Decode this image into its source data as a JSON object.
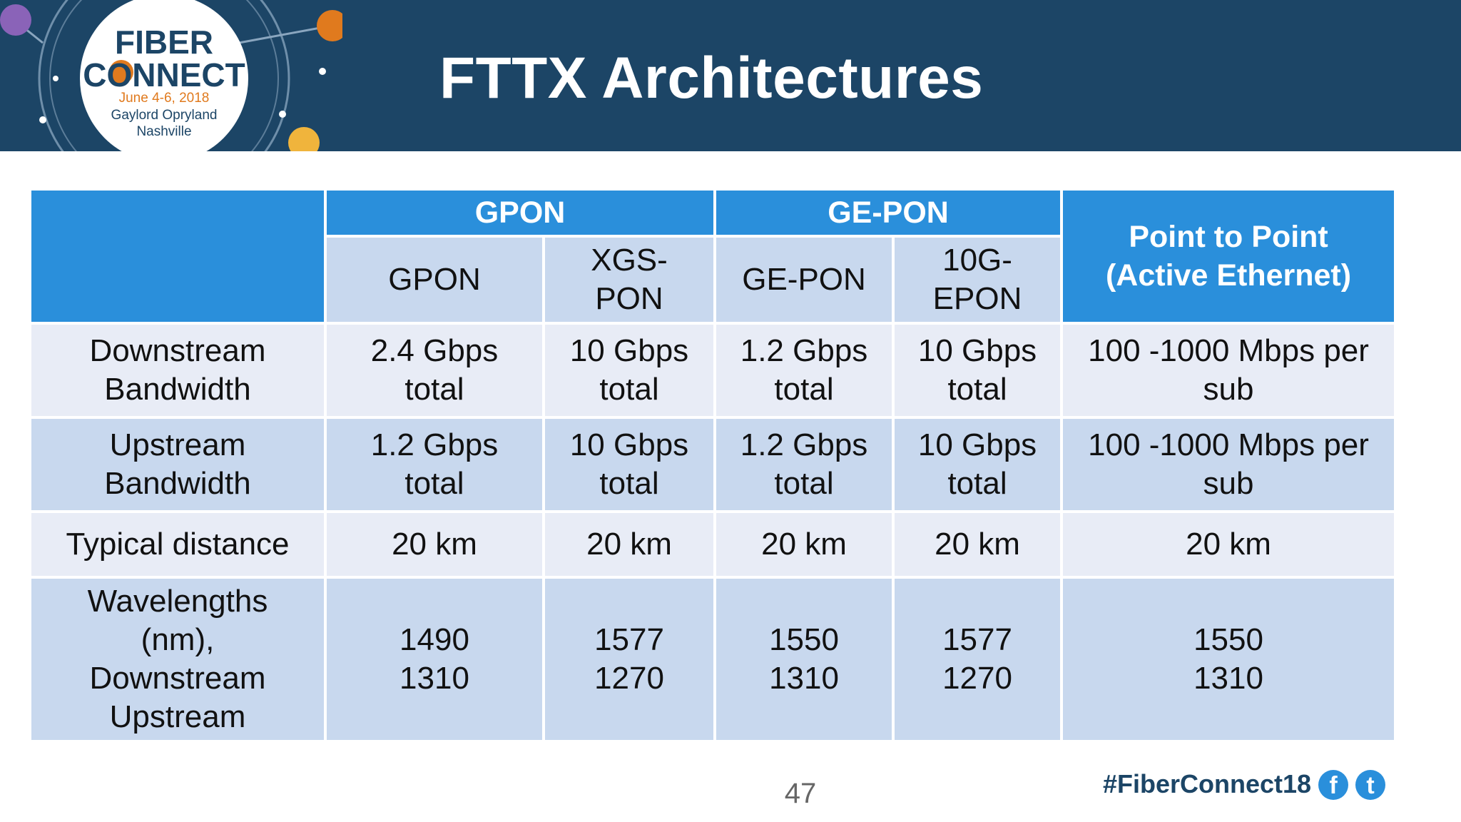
{
  "header": {
    "title": "FTTX Architectures",
    "logo": {
      "line1": "FIBER",
      "line2": "CONNECT",
      "date": "June 4-6, 2018",
      "venue": "Gaylord Opryland",
      "city": "Nashville"
    }
  },
  "table": {
    "groups": {
      "gpon": "GPON",
      "gepon": "GE-PON",
      "ptp": [
        "Point to Point",
        "(Active Ethernet)"
      ]
    },
    "subheaders": {
      "gpon": [
        "GPON"
      ],
      "xgspon": [
        "XGS-",
        "PON"
      ],
      "gepon": [
        "GE-PON"
      ],
      "tengepon": [
        "10G-",
        "EPON"
      ]
    },
    "rows": [
      {
        "label": [
          "Downstream",
          "Bandwidth"
        ],
        "cells": [
          [
            "2.4 Gbps",
            "total"
          ],
          [
            "10 Gbps",
            "total"
          ],
          [
            "1.2 Gbps",
            "total"
          ],
          [
            "10 Gbps",
            "total"
          ],
          [
            "100 -1000 Mbps per",
            "sub"
          ]
        ]
      },
      {
        "label": [
          "Upstream",
          "Bandwidth"
        ],
        "cells": [
          [
            "1.2 Gbps",
            "total"
          ],
          [
            "10 Gbps",
            "total"
          ],
          [
            "1.2 Gbps",
            "total"
          ],
          [
            "10 Gbps",
            "total"
          ],
          [
            "100 -1000 Mbps per",
            "sub"
          ]
        ]
      },
      {
        "label": [
          "Typical distance"
        ],
        "cells": [
          [
            "20 km"
          ],
          [
            "20 km"
          ],
          [
            "20 km"
          ],
          [
            "20 km"
          ],
          [
            "20 km"
          ]
        ]
      },
      {
        "label": [
          "Wavelengths",
          "(nm),",
          "Downstream",
          "Upstream"
        ],
        "cells": [
          [
            "1490",
            "1310"
          ],
          [
            "1577",
            "1270"
          ],
          [
            "1550",
            "1310"
          ],
          [
            "1577",
            "1270"
          ],
          [
            "1550",
            "1310"
          ]
        ]
      }
    ]
  },
  "footer": {
    "page_number": "47",
    "hashtag": "#FiberConnect18",
    "facebook_glyph": "f",
    "twitter_glyph": "t"
  },
  "colors": {
    "header_bg": "#1c4566",
    "header_blue": "#2a8fdb",
    "row_light": "#e8ecf6",
    "row_dark": "#c8d8ee",
    "accent_orange": "#e07a1e"
  }
}
